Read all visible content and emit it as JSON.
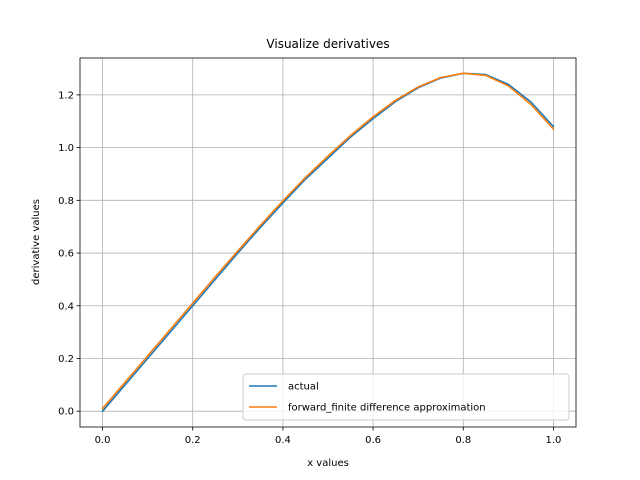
{
  "chart_data": {
    "type": "line",
    "title": "Visualize derivatives",
    "xlabel": "x values",
    "ylabel": "derivative values",
    "xlim": [
      -0.05,
      1.05
    ],
    "ylim": [
      -0.06,
      1.34
    ],
    "xticks": [
      0.0,
      0.2,
      0.4,
      0.6,
      0.8,
      1.0
    ],
    "xtick_labels": [
      "0.0",
      "0.2",
      "0.4",
      "0.6",
      "0.8",
      "1.0"
    ],
    "yticks": [
      0.0,
      0.2,
      0.4,
      0.6,
      0.8,
      1.0,
      1.2
    ],
    "ytick_labels": [
      "0.0",
      "0.2",
      "0.4",
      "0.6",
      "0.8",
      "1.0",
      "1.2"
    ],
    "grid": true,
    "legend_position": "lower-right",
    "x": [
      0.0,
      0.05,
      0.1,
      0.15,
      0.2,
      0.25,
      0.3,
      0.35,
      0.4,
      0.45,
      0.5,
      0.55,
      0.6,
      0.65,
      0.7,
      0.75,
      0.8,
      0.85,
      0.9,
      0.95,
      1.0
    ],
    "series": [
      {
        "name": "actual",
        "color": "#1f77b4",
        "values": [
          0.0,
          0.1,
          0.2,
          0.3,
          0.4,
          0.5,
          0.6,
          0.697,
          0.79,
          0.88,
          0.96,
          1.04,
          1.11,
          1.175,
          1.227,
          1.264,
          1.282,
          1.277,
          1.24,
          1.173,
          1.08
        ]
      },
      {
        "name": "forward_finite difference approximation",
        "color": "#ff7f0e",
        "values": [
          0.01,
          0.11,
          0.21,
          0.31,
          0.41,
          0.51,
          0.608,
          0.705,
          0.798,
          0.887,
          0.968,
          1.046,
          1.117,
          1.18,
          1.23,
          1.266,
          1.282,
          1.274,
          1.234,
          1.164,
          1.07
        ]
      }
    ]
  }
}
